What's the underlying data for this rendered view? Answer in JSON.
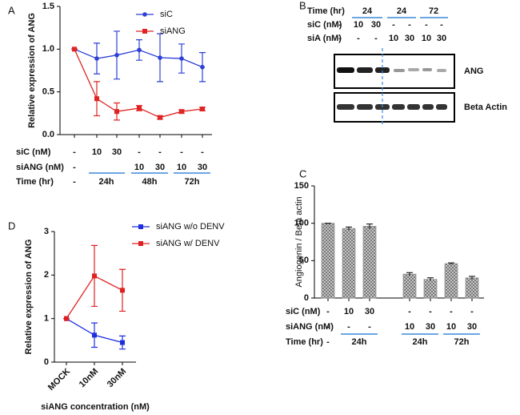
{
  "chart_data": [
    {
      "type": "line",
      "panel": "A",
      "ylabel": "Relative expression of ANG",
      "ylim": [
        0,
        1.5
      ],
      "yticks": [
        {
          "value": 0,
          "label": "0.0"
        },
        {
          "value": 0.5,
          "label": "0.5"
        },
        {
          "value": 1,
          "label": "1.0"
        },
        {
          "value": 1.5,
          "label": "1.5"
        }
      ],
      "legend": "top-right",
      "series": [
        {
          "name": "siC",
          "color": "#2e3fd6",
          "marker": "circle",
          "values": [
            1.0,
            0.89,
            0.93,
            0.99,
            0.9,
            0.89,
            0.79
          ],
          "errors": [
            0,
            0.18,
            0.28,
            0.12,
            0.28,
            0.17,
            0.17
          ]
        },
        {
          "name": "siANG",
          "color": "#e02424",
          "marker": "square",
          "values": [
            1.0,
            0.42,
            0.27,
            0.31,
            0.2,
            0.27,
            0.3
          ],
          "errors": [
            0,
            0.2,
            0.1,
            0.03,
            0.02,
            0.02,
            0.02
          ]
        }
      ],
      "conditions": [
        {
          "label": "siC (nM)",
          "cells": [
            "-",
            "10",
            "30",
            "-",
            "-",
            "-",
            "-"
          ]
        },
        {
          "label": "siANG (nM)",
          "cells": [
            "-",
            null,
            null,
            "10",
            "30",
            "10",
            "30"
          ]
        }
      ],
      "time": {
        "label": "Time (hr)",
        "cells": [
          "-",
          "24h",
          "48h",
          "72h"
        ]
      }
    },
    {
      "type": "bar",
      "panel": "C",
      "ylabel": "Angiogenin / Beta actin",
      "ylim": [
        0,
        150
      ],
      "yticks": [
        0,
        50,
        100,
        150
      ],
      "color": "#9a9a9a",
      "values": [
        100,
        93,
        96,
        32,
        25,
        46,
        27
      ],
      "errors": [
        0,
        2,
        3,
        2,
        2,
        1,
        2
      ],
      "conditions": [
        {
          "label": "siC (nM)",
          "cells": [
            "-",
            "10",
            "30",
            "-",
            "-",
            "-",
            "-"
          ]
        },
        {
          "label": "siANG (nM)",
          "cells": [
            "-",
            "-",
            "-",
            "10",
            "30",
            "10",
            "30"
          ]
        }
      ],
      "time": {
        "label": "Time (hr)",
        "cells": [
          "-",
          "24h",
          "24h",
          "72h"
        ]
      }
    },
    {
      "type": "line",
      "panel": "D",
      "ylabel": "Relative expression of ANG",
      "xlabel": "siANG concentration (nM)",
      "categories": [
        "MOCK",
        "10nM",
        "30nM"
      ],
      "ylim": [
        0,
        3
      ],
      "yticks": [
        0,
        1,
        2,
        3
      ],
      "legend": "top-right",
      "series": [
        {
          "name": "siANG w/o DENV",
          "color": "#1f2fe0",
          "marker": "square",
          "values": [
            1.0,
            0.62,
            0.45
          ],
          "errors": [
            0,
            0.28,
            0.15
          ]
        },
        {
          "name": "siANG w/ DENV",
          "color": "#e02020",
          "marker": "square",
          "values": [
            1.0,
            1.98,
            1.65
          ],
          "errors": [
            0,
            0.7,
            0.48
          ]
        }
      ]
    }
  ],
  "blot": {
    "panel": "B",
    "rows": [
      {
        "label": "Time (hr)",
        "cells": [
          "24",
          "24",
          "72"
        ]
      },
      {
        "label": "siC (nM)",
        "cells": [
          "-",
          "10",
          "30",
          "-",
          "-",
          "-",
          "-"
        ]
      },
      {
        "label": "siA (nM)",
        "cells": [
          "-",
          "-",
          "-",
          "10",
          "30",
          "10",
          "30"
        ]
      }
    ],
    "bands": [
      "ANG",
      "Beta Actin"
    ]
  }
}
